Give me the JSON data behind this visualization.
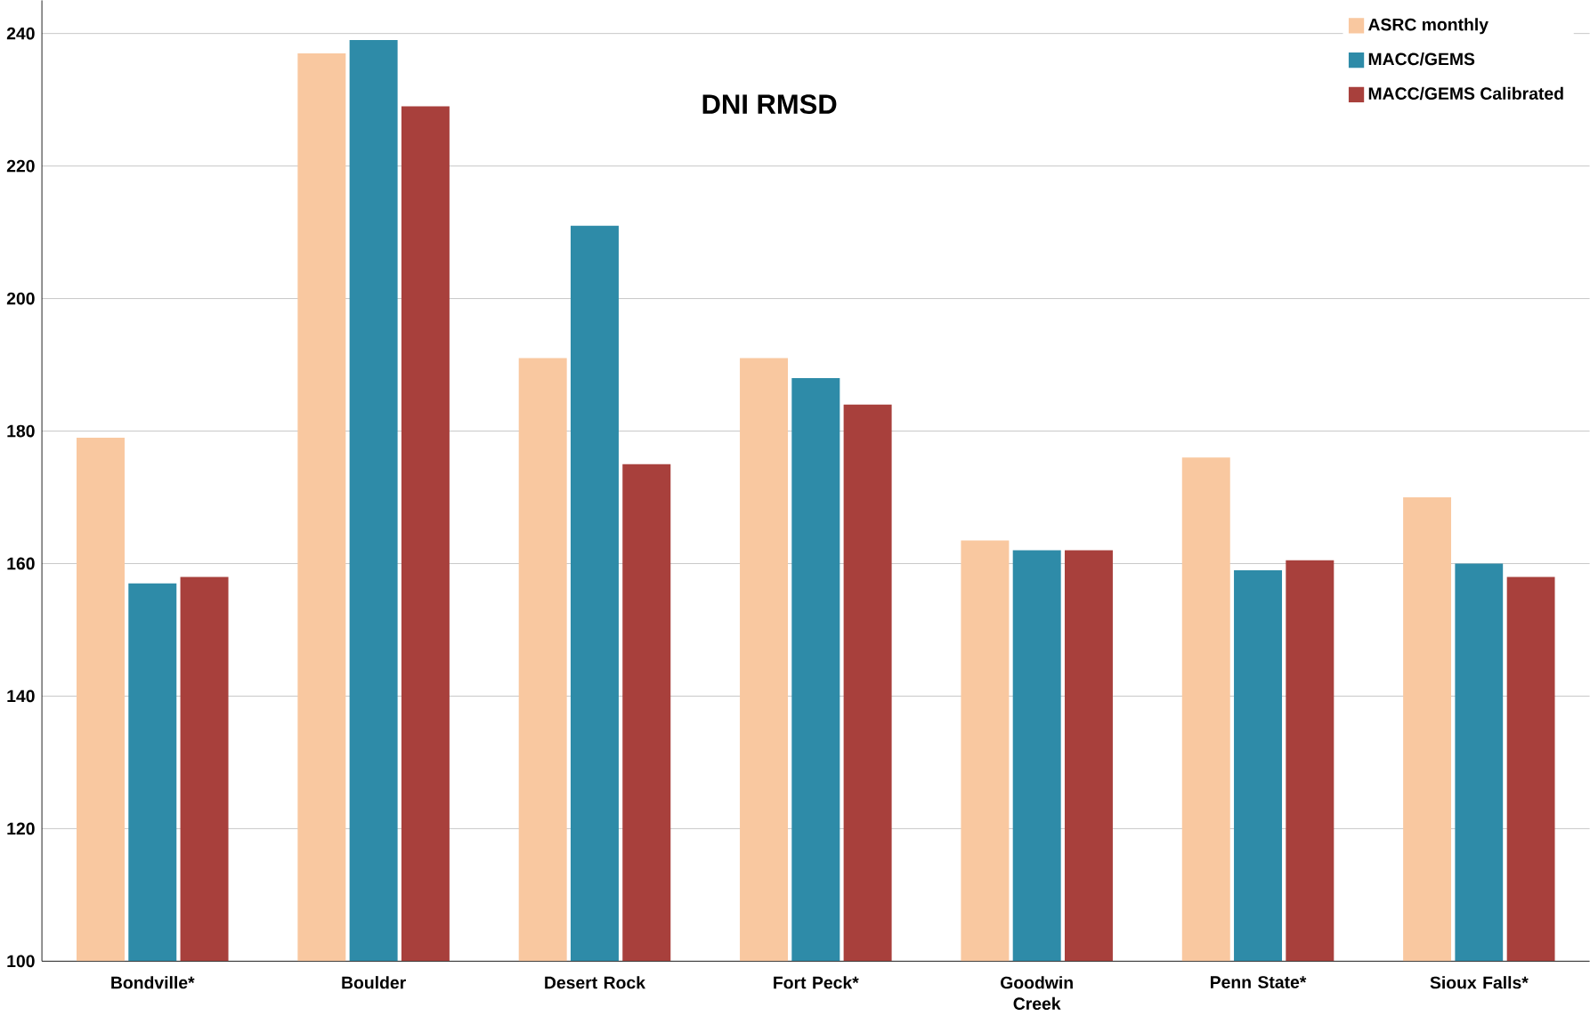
{
  "chart_data": {
    "type": "bar",
    "title": "DNI RMSD",
    "categories": [
      "Bondville*",
      "Boulder",
      "Desert Rock",
      "Fort Peck*",
      "Goodwin Creek",
      "Penn State*",
      "Sioux Falls*"
    ],
    "series": [
      {
        "name": "ASRC monthly",
        "color": "#f9c8a0",
        "values": [
          179,
          237,
          191,
          191,
          163.5,
          176,
          170
        ]
      },
      {
        "name": "MACC/GEMS",
        "color": "#2e8ba8",
        "values": [
          157,
          239,
          211,
          188,
          162,
          159,
          160
        ]
      },
      {
        "name": "MACC/GEMS Calibrated",
        "color": "#a8403c",
        "values": [
          158,
          229,
          175,
          184,
          162,
          160.5,
          158
        ]
      }
    ],
    "ylim": [
      100,
      245
    ],
    "yticks": [
      100,
      120,
      140,
      160,
      180,
      200,
      220,
      240
    ],
    "grid": "y",
    "legend": "top right"
  }
}
